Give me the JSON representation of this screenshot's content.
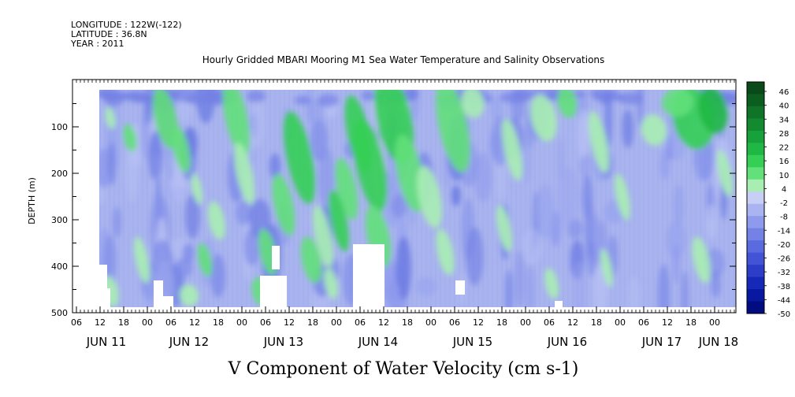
{
  "header": {
    "longitude": "LONGITUDE : 122W(-122)",
    "latitude": "LATITUDE : 36.8N",
    "year": "YEAR : 2011"
  },
  "chart_data": {
    "type": "heatmap",
    "title": "Hourly Gridded MBARI Mooring M1 Sea Water Temperature and Salinity Observations",
    "xlabel": "V Component of Water Velocity (cm s-1)",
    "ylabel": "DEPTH (m)",
    "ylim": [
      500,
      15
    ],
    "y_ticks": [
      100,
      200,
      300,
      400,
      500
    ],
    "x_hour_ticks": [
      "06",
      "12",
      "18",
      "00",
      "06",
      "12",
      "18",
      "00",
      "06",
      "12",
      "18",
      "00",
      "06",
      "12",
      "18",
      "00",
      "06",
      "12",
      "18",
      "00",
      "06",
      "12",
      "18",
      "00",
      "06",
      "12",
      "18",
      "00",
      "06",
      "12",
      "18",
      "00"
    ],
    "x_date_labels": [
      "JUN 11",
      "JUN 12",
      "JUN 13",
      "JUN 14",
      "JUN 15",
      "JUN 16",
      "JUN 17",
      "JUN 18"
    ],
    "colorbar_labels": [
      "46",
      "40",
      "34",
      "28",
      "22",
      "16",
      "10",
      "4",
      "-2",
      "-8",
      "-14",
      "-20",
      "-26",
      "-32",
      "-38",
      "-44",
      "-50"
    ],
    "colorbar_colors": [
      "#0a4a1a",
      "#0c5e20",
      "#107428",
      "#138a30",
      "#17a13a",
      "#1fb845",
      "#35cf55",
      "#62e07a",
      "#a8eeb2",
      "#c8cff5",
      "#aab4f0",
      "#8e9aec",
      "#7482e6",
      "#5a6be0",
      "#4253d6",
      "#2c3ec8",
      "#1628b8",
      "#0818a0",
      "#000c80"
    ],
    "grid": false,
    "legend": "colorbar right",
    "no_data_color": "#ffffff",
    "data_start_time": "JUN 11 12:00",
    "data_end_time": "JUN 18 03:00",
    "depth_range_with_data": [
      15,
      485
    ]
  }
}
